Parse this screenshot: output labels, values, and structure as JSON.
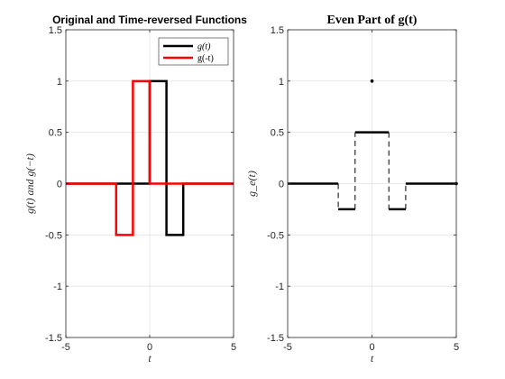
{
  "chart_data": [
    {
      "type": "line",
      "title": "Original and Time-reversed Functions",
      "xlabel": "t",
      "ylabel": "g(t)  and  g(−t)",
      "xlim": [
        -5,
        5
      ],
      "ylim": [
        -1.5,
        1.5
      ],
      "xticks": [
        -5,
        0,
        5
      ],
      "yticks": [
        -1.5,
        -1,
        -0.5,
        0,
        0.5,
        1,
        1.5
      ],
      "grid": true,
      "legend_position": "top-right",
      "legend": [
        "g(t)",
        "g(-t)"
      ],
      "series": [
        {
          "name": "g(t)",
          "color": "#000000",
          "x": [
            -5,
            0,
            0,
            1,
            1,
            2,
            2,
            5
          ],
          "y": [
            0,
            0,
            1,
            1,
            -0.5,
            -0.5,
            0,
            0
          ]
        },
        {
          "name": "g(-t)",
          "color": "#ff0000",
          "x": [
            -5,
            -2,
            -2,
            -1,
            -1,
            0,
            0,
            5
          ],
          "y": [
            0,
            0,
            -0.5,
            -0.5,
            1,
            1,
            0,
            0
          ]
        }
      ]
    },
    {
      "type": "line",
      "title": "Even Part of g(t)",
      "xlabel": "t",
      "ylabel": "g_e(t)",
      "xlim": [
        -5,
        5
      ],
      "ylim": [
        -1.5,
        1.5
      ],
      "xticks": [
        -5,
        0,
        5
      ],
      "yticks": [
        -1.5,
        -1,
        -0.5,
        0,
        0.5,
        1,
        1.5
      ],
      "grid": true,
      "series": [
        {
          "color": "#000000",
          "segments": [
            [
              [
                -5,
                0
              ],
              [
                -2,
                0
              ]
            ],
            [
              [
                -2,
                -0.25
              ],
              [
                -1,
                -0.25
              ]
            ],
            [
              [
                -1,
                0.5
              ],
              [
                1,
                0.5
              ]
            ],
            [
              [
                1,
                -0.25
              ],
              [
                2,
                -0.25
              ]
            ],
            [
              [
                2,
                0
              ],
              [
                5,
                0
              ]
            ]
          ],
          "dashed_jumps": [
            [
              [
                -2,
                0
              ],
              [
                -2,
                -0.25
              ]
            ],
            [
              [
                -1,
                -0.25
              ],
              [
                -1,
                0.5
              ]
            ],
            [
              [
                1,
                0.5
              ],
              [
                1,
                -0.25
              ]
            ],
            [
              [
                2,
                -0.25
              ],
              [
                2,
                0
              ]
            ]
          ],
          "points": [
            [
              0,
              1
            ],
            [
              5,
              0
            ]
          ]
        }
      ]
    }
  ]
}
